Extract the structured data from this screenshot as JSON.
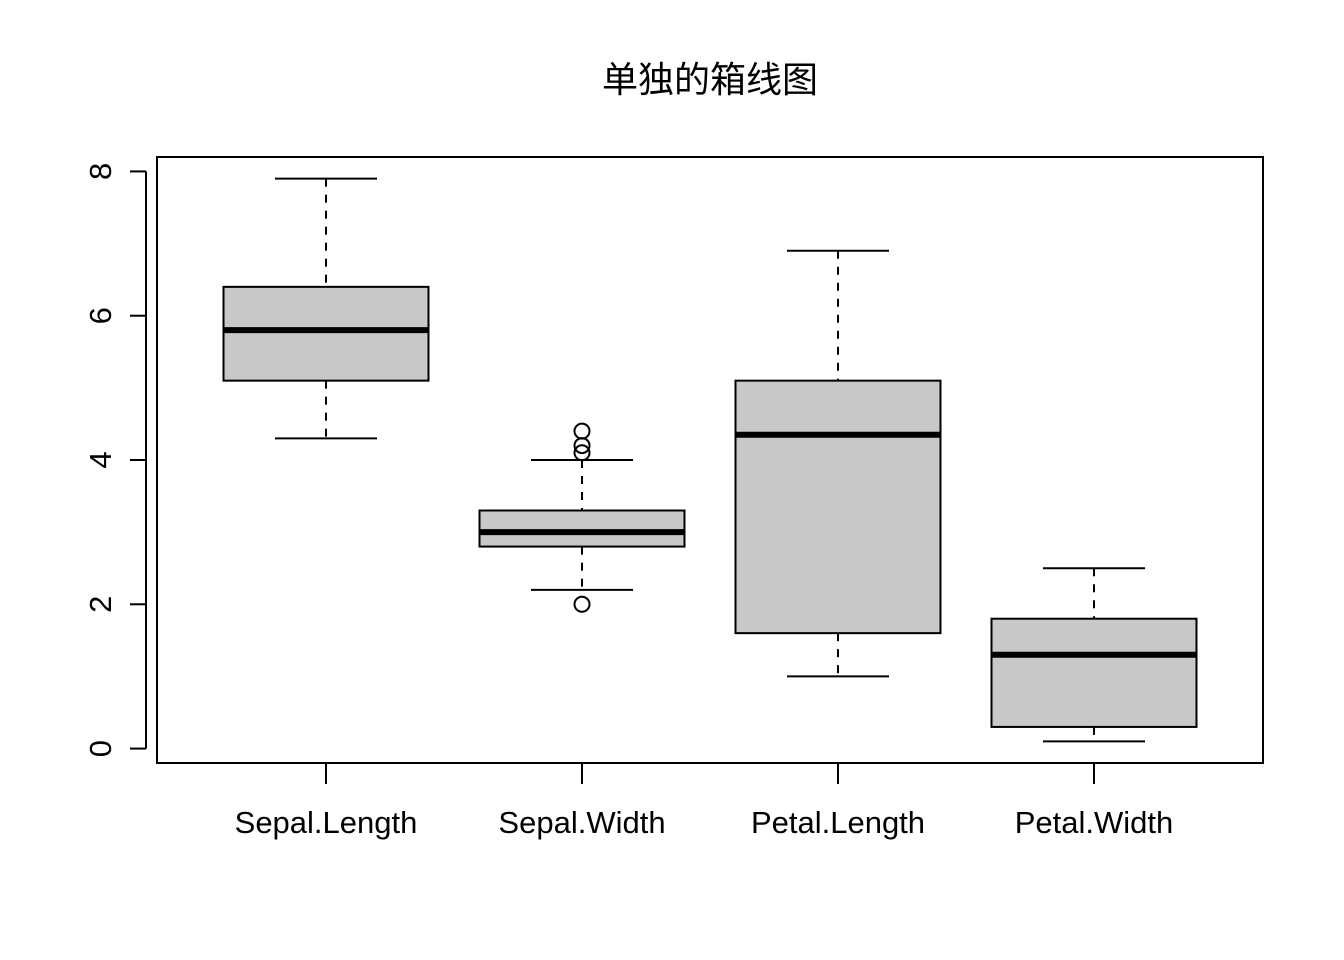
{
  "chart_data": {
    "type": "box",
    "title": "单独的箱线图",
    "xlabel": "",
    "ylabel": "",
    "categories": [
      "Sepal.Length",
      "Sepal.Width",
      "Petal.Length",
      "Petal.Width"
    ],
    "ylim": [
      -0.2,
      8.2
    ],
    "yticks": [
      0,
      2,
      4,
      6,
      8
    ],
    "grid": false,
    "legend": "none",
    "box_fill": "#c8c8c8",
    "line_color": "#000000",
    "series": [
      {
        "category": "Sepal.Length",
        "min": 4.3,
        "q1": 5.1,
        "median": 5.8,
        "q3": 6.4,
        "max": 7.9,
        "outliers": []
      },
      {
        "category": "Sepal.Width",
        "min": 2.2,
        "q1": 2.8,
        "median": 3.0,
        "q3": 3.3,
        "max": 4.0,
        "outliers": [
          4.4,
          4.2,
          4.1,
          2.0
        ]
      },
      {
        "category": "Petal.Length",
        "min": 1.0,
        "q1": 1.6,
        "median": 4.35,
        "q3": 5.1,
        "max": 6.9,
        "outliers": []
      },
      {
        "category": "Petal.Width",
        "min": 0.1,
        "q1": 0.3,
        "median": 1.3,
        "q3": 1.8,
        "max": 2.5,
        "outliers": []
      }
    ]
  }
}
